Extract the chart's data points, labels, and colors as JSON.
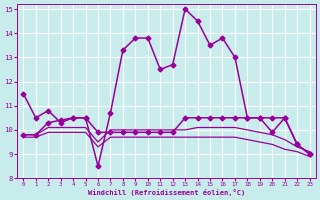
{
  "xlabel": "Windchill (Refroidissement éolien,°C)",
  "background_color": "#c8ecec",
  "grid_color": "#ffffff",
  "line_color": "#990099",
  "xlim": [
    -0.5,
    23.5
  ],
  "ylim": [
    8,
    15.2
  ],
  "xticks": [
    0,
    1,
    2,
    3,
    4,
    5,
    6,
    7,
    8,
    9,
    10,
    11,
    12,
    13,
    14,
    15,
    16,
    17,
    18,
    19,
    20,
    21,
    22,
    23
  ],
  "yticks": [
    8,
    9,
    10,
    11,
    12,
    13,
    14,
    15
  ],
  "series": [
    {
      "x": [
        0,
        1,
        2,
        3,
        4,
        5,
        6,
        7,
        8,
        9,
        10,
        11,
        12,
        13,
        14,
        15,
        16,
        17,
        18,
        19,
        20,
        21,
        22,
        23
      ],
      "y": [
        11.5,
        10.5,
        10.8,
        10.3,
        10.5,
        10.5,
        8.5,
        10.7,
        13.3,
        13.8,
        13.8,
        12.5,
        12.7,
        15.0,
        14.5,
        13.5,
        13.8,
        13.0,
        10.5,
        10.5,
        10.5,
        10.5,
        9.4,
        9.0
      ],
      "marker": "D",
      "markersize": 2.5,
      "linewidth": 1.1
    },
    {
      "x": [
        0,
        1,
        2,
        3,
        4,
        5,
        6,
        7,
        8,
        9,
        10,
        11,
        12,
        13,
        14,
        15,
        16,
        17,
        18,
        19,
        20,
        21,
        22,
        23
      ],
      "y": [
        9.8,
        9.8,
        10.3,
        10.4,
        10.5,
        10.5,
        9.9,
        9.9,
        9.9,
        9.9,
        9.9,
        9.9,
        9.9,
        10.5,
        10.5,
        10.5,
        10.5,
        10.5,
        10.5,
        10.5,
        9.9,
        10.5,
        9.4,
        9.0
      ],
      "marker": "D",
      "markersize": 2.5,
      "linewidth": 1.1
    },
    {
      "x": [
        0,
        1,
        2,
        3,
        4,
        5,
        6,
        7,
        8,
        9,
        10,
        11,
        12,
        13,
        14,
        15,
        16,
        17,
        18,
        19,
        20,
        21,
        22,
        23
      ],
      "y": [
        9.8,
        9.8,
        10.1,
        10.1,
        10.1,
        10.1,
        9.5,
        10.0,
        10.0,
        10.0,
        10.0,
        10.0,
        10.0,
        10.0,
        10.1,
        10.1,
        10.1,
        10.1,
        10.0,
        9.9,
        9.8,
        9.6,
        9.3,
        9.1
      ],
      "marker": null,
      "markersize": 0,
      "linewidth": 0.9
    },
    {
      "x": [
        0,
        1,
        2,
        3,
        4,
        5,
        6,
        7,
        8,
        9,
        10,
        11,
        12,
        13,
        14,
        15,
        16,
        17,
        18,
        19,
        20,
        21,
        22,
        23
      ],
      "y": [
        9.7,
        9.7,
        9.9,
        9.9,
        9.9,
        9.9,
        9.3,
        9.7,
        9.7,
        9.7,
        9.7,
        9.7,
        9.7,
        9.7,
        9.7,
        9.7,
        9.7,
        9.7,
        9.6,
        9.5,
        9.4,
        9.2,
        9.1,
        8.9
      ],
      "marker": null,
      "markersize": 0,
      "linewidth": 0.9
    }
  ]
}
